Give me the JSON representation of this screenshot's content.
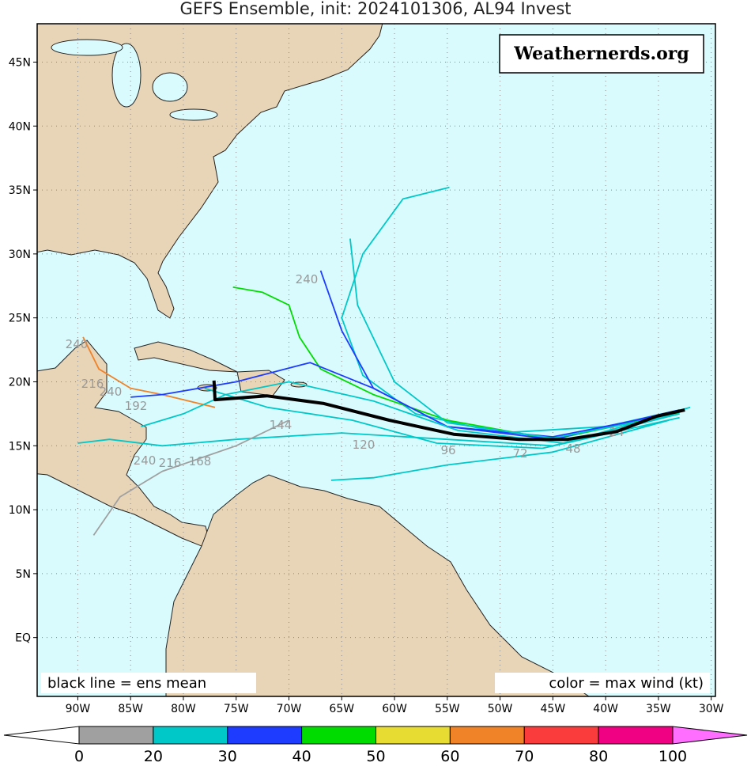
{
  "title": "GEFS Ensemble, init: 2024101306, AL94 Invest",
  "watermark": "Weathernerds.org",
  "note_left": "black line = ens mean",
  "note_right": "color = max wind (kt)",
  "map": {
    "xlim": [
      -93.85,
      -29.6
    ],
    "ylim": [
      -4.6,
      48
    ],
    "grid": true,
    "xticks": [
      {
        "value": -90,
        "label": "90W"
      },
      {
        "value": -85,
        "label": "85W"
      },
      {
        "value": -80,
        "label": "80W"
      },
      {
        "value": -75,
        "label": "75W"
      },
      {
        "value": -70,
        "label": "70W"
      },
      {
        "value": -65,
        "label": "65W"
      },
      {
        "value": -60,
        "label": "60W"
      },
      {
        "value": -55,
        "label": "55W"
      },
      {
        "value": -50,
        "label": "50W"
      },
      {
        "value": -45,
        "label": "45W"
      },
      {
        "value": -40,
        "label": "40W"
      },
      {
        "value": -35,
        "label": "35W"
      },
      {
        "value": -30,
        "label": "30W"
      }
    ],
    "yticks": [
      {
        "value": 0,
        "label": "EQ"
      },
      {
        "value": 5,
        "label": "5N"
      },
      {
        "value": 10,
        "label": "10N"
      },
      {
        "value": 15,
        "label": "15N"
      },
      {
        "value": 20,
        "label": "20N"
      },
      {
        "value": 25,
        "label": "25N"
      },
      {
        "value": 30,
        "label": "30N"
      },
      {
        "value": 35,
        "label": "35N"
      },
      {
        "value": 40,
        "label": "40N"
      },
      {
        "value": 45,
        "label": "45N"
      }
    ]
  },
  "colorbar": {
    "bounds": [
      0,
      20,
      30,
      40,
      50,
      60,
      70,
      80,
      100
    ],
    "colors": [
      "#a0a0a0",
      "#00c8c8",
      "#1e3cff",
      "#00dc00",
      "#e6dc32",
      "#f08228",
      "#fa3c3c",
      "#f00082"
    ],
    "under_color": "#ffffff",
    "over_color": "#ff6eff",
    "ticks": [
      0,
      20,
      30,
      40,
      50,
      60,
      70,
      80,
      100
    ]
  },
  "mean_track": {
    "color": "#000000",
    "lon": [
      -77.1,
      -77.0,
      -72.1,
      -66.7,
      -60.5,
      -54.4,
      -48.2,
      -43.6,
      -39.0,
      -35.2,
      -32.5
    ],
    "lat": [
      20.1,
      18.6,
      18.9,
      18.3,
      17.0,
      15.9,
      15.5,
      15.5,
      16.1,
      17.3,
      17.8
    ]
  },
  "members": [
    {
      "color": "#00c8c8",
      "lon": [
        -33,
        -40,
        -50,
        -58,
        -63,
        -65,
        -63,
        -59.2,
        -54.8
      ],
      "lat": [
        17.8,
        16.5,
        16,
        17.5,
        20.5,
        25,
        30,
        34.3,
        35.2
      ]
    },
    {
      "color": "#00dc00",
      "lon": [
        -33,
        -45,
        -55,
        -62,
        -67,
        -69,
        -70,
        -72.5,
        -75.3
      ],
      "lat": [
        17.6,
        15.5,
        17,
        19,
        21,
        23.5,
        26,
        27,
        27.4
      ]
    },
    {
      "color": "#1e3cff",
      "lon": [
        -34,
        -45,
        -55,
        -62,
        -65,
        -67
      ],
      "lat": [
        17.5,
        15.7,
        16.5,
        19.5,
        24,
        28.7
      ]
    },
    {
      "color": "#f08228",
      "lon": [
        -77,
        -82,
        -85,
        -88,
        -89.5
      ],
      "lat": [
        18,
        19,
        19.5,
        21,
        23.5
      ]
    },
    {
      "color": "#00c8c8",
      "lon": [
        -33,
        -45,
        -55,
        -65,
        -75,
        -82,
        -87,
        -90
      ],
      "lat": [
        17.5,
        15,
        15.5,
        16,
        15.5,
        15,
        15.5,
        15.2
      ]
    },
    {
      "color": "#a0a0a0",
      "lon": [
        -70,
        -75,
        -82,
        -86,
        -88.5
      ],
      "lat": [
        17,
        15,
        13,
        11,
        8
      ]
    },
    {
      "color": "#00c8c8",
      "lon": [
        -34,
        -45,
        -55,
        -62,
        -66
      ],
      "lat": [
        17,
        14.5,
        13.5,
        12.5,
        12.3
      ]
    },
    {
      "color": "#1e3cff",
      "lon": [
        -33,
        -45,
        -55,
        -62,
        -68,
        -75,
        -82,
        -85
      ],
      "lat": [
        17.8,
        15.5,
        16.5,
        19.5,
        21.5,
        20,
        19,
        18.8
      ]
    },
    {
      "color": "#00c8c8",
      "lon": [
        -33,
        -45,
        -55,
        -60,
        -63.5,
        -64.2
      ],
      "lat": [
        17.5,
        15.6,
        16.8,
        20,
        26,
        31.2
      ]
    },
    {
      "color": "#00c8c8",
      "lon": [
        -32,
        -44,
        -54,
        -62,
        -70,
        -76,
        -80,
        -84
      ],
      "lat": [
        18,
        15.2,
        16.2,
        18.5,
        20,
        19,
        17.5,
        16.5
      ]
    },
    {
      "color": "#00c8c8",
      "lon": [
        -33,
        -46,
        -56,
        -64,
        -72,
        -78
      ],
      "lat": [
        17.2,
        14.8,
        15.2,
        17,
        18,
        19.5
      ]
    }
  ],
  "track_labels": [
    "240",
    "240",
    "216",
    "240",
    "192",
    "240",
    "216",
    "168",
    "144",
    "120",
    "96",
    "72",
    "48",
    "24"
  ]
}
